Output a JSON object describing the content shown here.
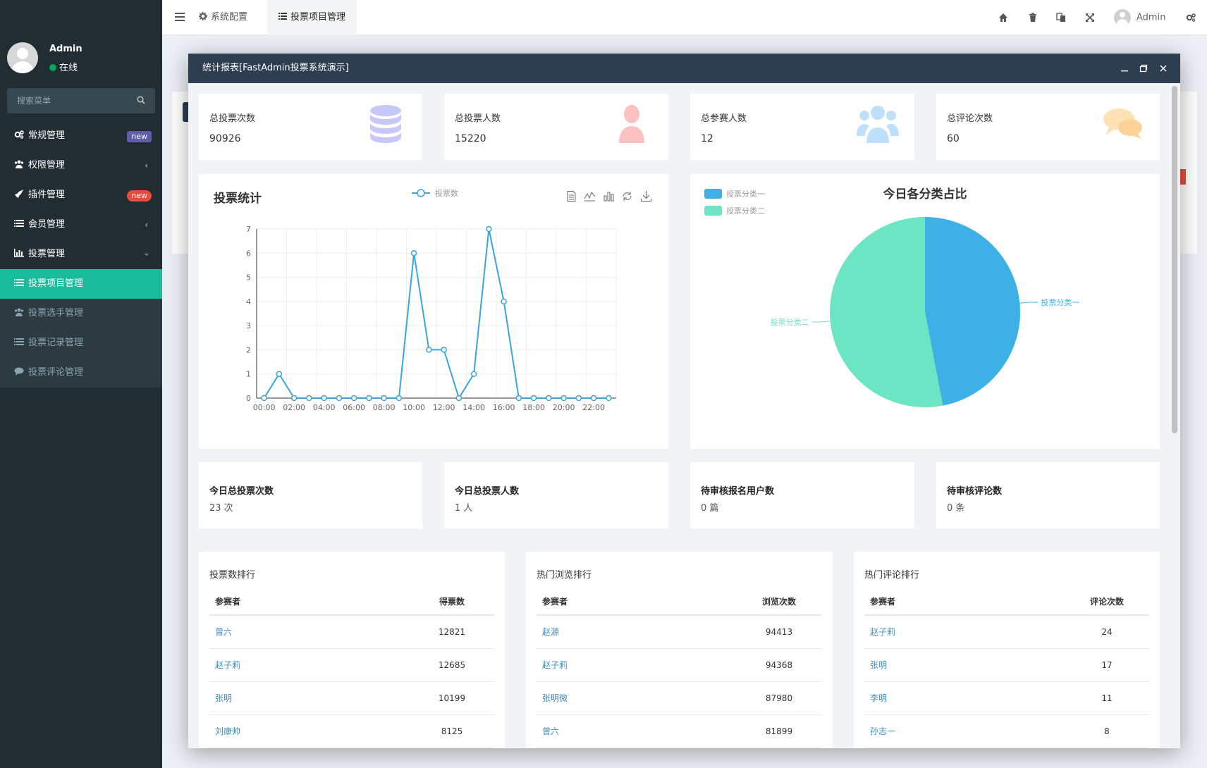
{
  "sidebar": {
    "user": {
      "name": "Admin",
      "status": "在线"
    },
    "search": {
      "placeholder": "搜索菜单"
    },
    "menu": [
      {
        "label": "常规管理",
        "icon": "cogs-icon",
        "badge": "new"
      },
      {
        "label": "权限管理",
        "icon": "users-icon"
      },
      {
        "label": "插件管理",
        "icon": "rocket-icon",
        "badge": "new"
      },
      {
        "label": "会员管理",
        "icon": "list-icon"
      },
      {
        "label": "投票管理",
        "icon": "bar-chart-icon"
      },
      {
        "label": "投票项目管理",
        "icon": "list-icon"
      },
      {
        "label": "投票选手管理",
        "icon": "users-icon"
      },
      {
        "label": "投票记录管理",
        "icon": "list-icon"
      },
      {
        "label": "投票评论管理",
        "icon": "comment-icon"
      }
    ]
  },
  "navbar": {
    "tabs": [
      {
        "label": "系统配置",
        "icon": "cog-icon"
      },
      {
        "label": "投票项目管理",
        "icon": "list-icon"
      }
    ],
    "user": "Admin"
  },
  "modal": {
    "title": "统计报表[FastAdmin投票系统演示]",
    "stats": [
      {
        "label": "总投票次数",
        "value": "90926",
        "icon": "database-icon",
        "color": "#c5c8f8"
      },
      {
        "label": "总投票人数",
        "value": "15220",
        "icon": "user-icon",
        "color": "#fbc0c0"
      },
      {
        "label": "总参赛人数",
        "value": "12",
        "icon": "users-icon",
        "color": "#bfe0fa"
      },
      {
        "label": "总评论次数",
        "value": "60",
        "icon": "comments-icon",
        "color": "#fde2b6"
      }
    ],
    "today": [
      {
        "label": "今日总投票次数",
        "value": "23 次"
      },
      {
        "label": "今日总投票人数",
        "value": "1 人"
      },
      {
        "label": "待审核报名用户数",
        "value": "0 篇"
      },
      {
        "label": "待审核评论数",
        "value": "0 条"
      }
    ],
    "rankings": [
      {
        "title": "投票数排行",
        "col1": "参赛者",
        "col2": "得票数",
        "rows": [
          {
            "name": "曾六",
            "value": "12821"
          },
          {
            "name": "赵子莉",
            "value": "12685"
          },
          {
            "name": "张明",
            "value": "10199"
          },
          {
            "name": "刘康帅",
            "value": "8125"
          }
        ]
      },
      {
        "title": "热门浏览排行",
        "col1": "参赛者",
        "col2": "浏览次数",
        "rows": [
          {
            "name": "赵源",
            "value": "94413"
          },
          {
            "name": "赵子莉",
            "value": "94368"
          },
          {
            "name": "张明微",
            "value": "87980"
          },
          {
            "name": "曾六",
            "value": "81899"
          }
        ]
      },
      {
        "title": "热门评论排行",
        "col1": "参赛者",
        "col2": "评论次数",
        "rows": [
          {
            "name": "赵子莉",
            "value": "24"
          },
          {
            "name": "张明",
            "value": "17"
          },
          {
            "name": "李明",
            "value": "11"
          },
          {
            "name": "孙志一",
            "value": "8"
          }
        ]
      }
    ]
  },
  "colors": {
    "sidebar": "#222d32",
    "accent": "#18bc9c",
    "header": "#2c3e50",
    "line": "#3aa4dc",
    "pie1": "#3db1e5",
    "pie2": "#6ce5c2"
  },
  "chart_data": [
    {
      "type": "line",
      "title": "投票统计",
      "legend": [
        "投票数"
      ],
      "x": [
        "00:00",
        "01:00",
        "02:00",
        "03:00",
        "04:00",
        "05:00",
        "06:00",
        "07:00",
        "08:00",
        "09:00",
        "10:00",
        "11:00",
        "12:00",
        "13:00",
        "14:00",
        "15:00",
        "16:00",
        "17:00",
        "18:00",
        "19:00",
        "20:00",
        "21:00",
        "22:00",
        "23:00"
      ],
      "x_tick_labels": [
        "00:00",
        "02:00",
        "04:00",
        "06:00",
        "08:00",
        "10:00",
        "12:00",
        "14:00",
        "16:00",
        "18:00",
        "20:00",
        "22:00"
      ],
      "series": [
        {
          "name": "投票数",
          "values": [
            0,
            1,
            0,
            0,
            0,
            0,
            0,
            0,
            0,
            0,
            6,
            2,
            2,
            0,
            1,
            7,
            4,
            0,
            0,
            0,
            0,
            0,
            0,
            0
          ]
        }
      ],
      "ylim": [
        0,
        7
      ],
      "yticks": [
        0,
        1,
        2,
        3,
        4,
        5,
        6,
        7
      ],
      "grid": true,
      "legend_position": "top"
    },
    {
      "type": "pie",
      "title": "今日各分类占比",
      "categories": [
        "投票分类一",
        "投票分类二"
      ],
      "values": [
        47,
        53
      ],
      "legend_position": "top-left"
    }
  ]
}
